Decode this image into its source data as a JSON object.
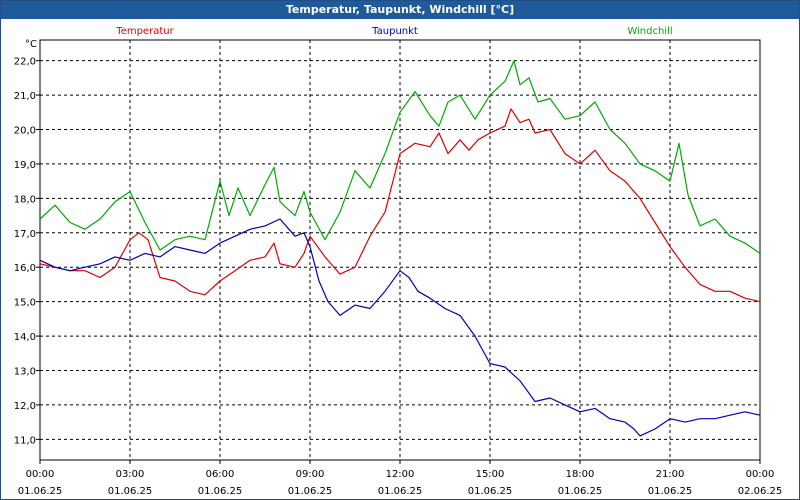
{
  "window": {
    "title": "Temperatur, Taupunkt, Windchill [°C]"
  },
  "chart_data": {
    "type": "line",
    "title": "Temperatur, Taupunkt, Windchill [°C]",
    "ylabel": "°C",
    "xlabel": "",
    "ylim": [
      10.4,
      22.6
    ],
    "xlim": [
      0,
      24
    ],
    "grid": true,
    "legend_position": "top",
    "yticks": [
      11.0,
      12.0,
      13.0,
      14.0,
      15.0,
      16.0,
      17.0,
      18.0,
      19.0,
      20.0,
      21.0,
      22.0
    ],
    "ytick_labels": [
      "11,0",
      "12,0",
      "13,0",
      "14,0",
      "15,0",
      "16,0",
      "17,0",
      "18,0",
      "19,0",
      "20,0",
      "21,0",
      "22,0"
    ],
    "xticks": [
      0,
      3,
      6,
      9,
      12,
      15,
      18,
      21,
      24
    ],
    "xtick_time_labels": [
      "00:00",
      "03:00",
      "06:00",
      "09:00",
      "12:00",
      "15:00",
      "18:00",
      "21:00",
      "00:00"
    ],
    "xtick_date_labels": [
      "01.06.25",
      "01.06.25",
      "01.06.25",
      "01.06.25",
      "01.06.25",
      "01.06.25",
      "01.06.25",
      "01.06.25",
      "02.06.25"
    ],
    "series": [
      {
        "name": "Temperatur",
        "color": "#dd0000",
        "x": [
          0,
          0.5,
          1,
          1.5,
          2,
          2.5,
          3,
          3.3,
          3.6,
          4,
          4.5,
          5,
          5.5,
          6,
          6.5,
          7,
          7.5,
          7.8,
          8,
          8.5,
          8.8,
          9,
          9.5,
          10,
          10.5,
          11,
          11.5,
          12,
          12.5,
          13,
          13.3,
          13.6,
          14,
          14.3,
          14.6,
          15,
          15.5,
          15.7,
          16,
          16.3,
          16.5,
          17,
          17.5,
          18,
          18.5,
          19,
          19.5,
          20,
          20.5,
          21,
          21.5,
          22,
          22.5,
          23,
          23.5,
          24
        ],
        "values": [
          16.1,
          16.0,
          15.9,
          15.9,
          15.7,
          16.0,
          16.8,
          17.0,
          16.8,
          15.7,
          15.6,
          15.3,
          15.2,
          15.6,
          15.9,
          16.2,
          16.3,
          16.7,
          16.1,
          16.0,
          16.4,
          16.9,
          16.3,
          15.8,
          16.0,
          16.9,
          17.6,
          19.3,
          19.6,
          19.5,
          19.9,
          19.3,
          19.7,
          19.4,
          19.7,
          19.9,
          20.1,
          20.6,
          20.2,
          20.3,
          19.9,
          20.0,
          19.3,
          19.0,
          19.4,
          18.8,
          18.5,
          18.0,
          17.3,
          16.6,
          16.0,
          15.5,
          15.3,
          15.3,
          15.1,
          15.0
        ]
      },
      {
        "name": "Taupunkt",
        "color": "#0000bb",
        "x": [
          0,
          0.5,
          1,
          1.5,
          2,
          2.5,
          3,
          3.5,
          4,
          4.5,
          5,
          5.5,
          6,
          6.5,
          7,
          7.5,
          8,
          8.5,
          8.8,
          9,
          9.3,
          9.6,
          10,
          10.5,
          11,
          11.5,
          12,
          12.3,
          12.6,
          13,
          13.5,
          14,
          14.5,
          15,
          15.5,
          16,
          16.5,
          17,
          17.5,
          18,
          18.5,
          19,
          19.5,
          19.8,
          20,
          20.5,
          21,
          21.5,
          22,
          22.5,
          23,
          23.5,
          24
        ],
        "values": [
          16.2,
          16.0,
          15.9,
          16.0,
          16.1,
          16.3,
          16.2,
          16.4,
          16.3,
          16.6,
          16.5,
          16.4,
          16.7,
          16.9,
          17.1,
          17.2,
          17.4,
          16.9,
          17.0,
          16.6,
          15.6,
          15.0,
          14.6,
          14.9,
          14.8,
          15.3,
          15.9,
          15.7,
          15.3,
          15.1,
          14.8,
          14.6,
          14.0,
          13.2,
          13.1,
          12.7,
          12.1,
          12.2,
          12.0,
          11.8,
          11.9,
          11.6,
          11.5,
          11.3,
          11.1,
          11.3,
          11.6,
          11.5,
          11.6,
          11.6,
          11.7,
          11.8,
          11.7
        ]
      },
      {
        "name": "Windchill",
        "color": "#00aa00",
        "x": [
          0,
          0.5,
          1,
          1.5,
          2,
          2.5,
          3,
          3.5,
          4,
          4.5,
          5,
          5.5,
          6,
          6.3,
          6.6,
          7,
          7.5,
          7.8,
          8,
          8.5,
          8.8,
          9,
          9.5,
          10,
          10.5,
          11,
          11.5,
          12,
          12.5,
          13,
          13.3,
          13.6,
          14,
          14.5,
          15,
          15.5,
          15.8,
          16,
          16.3,
          16.6,
          17,
          17.5,
          18,
          18.5,
          19,
          19.5,
          20,
          20.5,
          21,
          21.3,
          21.6,
          22,
          22.5,
          23,
          23.5,
          24
        ],
        "values": [
          17.4,
          17.8,
          17.3,
          17.1,
          17.4,
          17.9,
          18.2,
          17.3,
          16.5,
          16.8,
          16.9,
          16.8,
          18.5,
          17.5,
          18.3,
          17.5,
          18.4,
          18.9,
          17.9,
          17.5,
          18.2,
          17.6,
          16.8,
          17.6,
          18.8,
          18.3,
          19.3,
          20.5,
          21.1,
          20.4,
          20.1,
          20.8,
          21.0,
          20.3,
          21.0,
          21.4,
          22.0,
          21.3,
          21.5,
          20.8,
          20.9,
          20.3,
          20.4,
          20.8,
          20.0,
          19.6,
          19.0,
          18.8,
          18.5,
          19.6,
          18.1,
          17.2,
          17.4,
          16.9,
          16.7,
          16.4
        ]
      }
    ]
  }
}
